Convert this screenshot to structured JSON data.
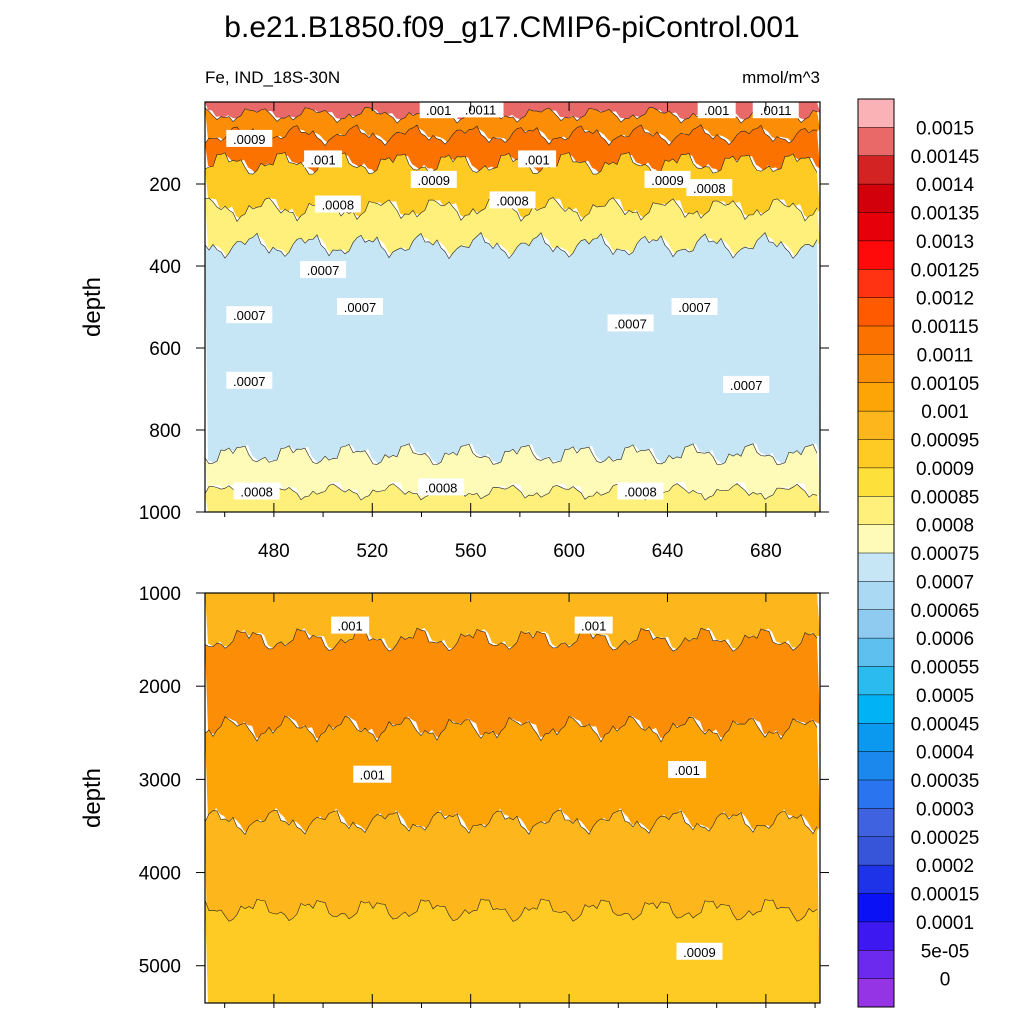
{
  "figure": {
    "title": "b.e21.B1850.f09_g17.CMIP6-piControl.001",
    "left_label": "Fe, IND_18S-30N",
    "right_label": "mmol/m^3"
  },
  "chart_data": [
    {
      "type": "heatmap",
      "panel": "upper",
      "variable": "Fe",
      "region": "IND_18S-30N",
      "units": "mmol/m^3",
      "xlabel": "",
      "ylabel": "depth",
      "xlim": [
        452,
        702
      ],
      "ylim": [
        1000,
        0
      ],
      "xticks": [
        480,
        520,
        560,
        600,
        640,
        680
      ],
      "yticks": [
        200,
        400,
        600,
        800,
        1000
      ],
      "show_x_tick_labels": true,
      "description_layers": [
        {
          "depth_range": [
            0,
            30
          ],
          "value": 0.00145
        },
        {
          "depth_range": [
            30,
            80
          ],
          "value": 0.00105
        },
        {
          "depth_range": [
            80,
            150
          ],
          "value": 0.0011
        },
        {
          "depth_range": [
            150,
            260
          ],
          "value": 0.0009
        },
        {
          "depth_range": [
            260,
            350
          ],
          "value": 0.0008
        },
        {
          "depth_range": [
            350,
            860
          ],
          "value": 0.0007
        },
        {
          "depth_range": [
            860,
            950
          ],
          "value": 0.00075
        },
        {
          "depth_range": [
            950,
            1000
          ],
          "value": 0.0008
        }
      ],
      "contour_labels": [
        {
          "text": ".0009",
          "x": 470,
          "depth": 90
        },
        {
          "text": ".001",
          "x": 547,
          "depth": 20
        },
        {
          "text": ".0011",
          "x": 564,
          "depth": 18
        },
        {
          "text": ".001",
          "x": 500,
          "depth": 140
        },
        {
          "text": ".001",
          "x": 587,
          "depth": 140
        },
        {
          "text": ".0009",
          "x": 545,
          "depth": 190
        },
        {
          "text": ".0009",
          "x": 640,
          "depth": 190
        },
        {
          "text": ".001",
          "x": 660,
          "depth": 20
        },
        {
          "text": ".0011",
          "x": 684,
          "depth": 20
        },
        {
          "text": ".0008",
          "x": 657,
          "depth": 210
        },
        {
          "text": ".0008",
          "x": 506,
          "depth": 250
        },
        {
          "text": ".0008",
          "x": 577,
          "depth": 240
        },
        {
          "text": ".0007",
          "x": 500,
          "depth": 410
        },
        {
          "text": ".0007",
          "x": 470,
          "depth": 520
        },
        {
          "text": ".0007",
          "x": 515,
          "depth": 500
        },
        {
          "text": ".0007",
          "x": 625,
          "depth": 540
        },
        {
          "text": ".0007",
          "x": 651,
          "depth": 500
        },
        {
          "text": ".0007",
          "x": 470,
          "depth": 680
        },
        {
          "text": ".0007",
          "x": 672,
          "depth": 690
        },
        {
          "text": ".0008",
          "x": 473,
          "depth": 950
        },
        {
          "text": ".0008",
          "x": 548,
          "depth": 940
        },
        {
          "text": ".0008",
          "x": 629,
          "depth": 950
        }
      ]
    },
    {
      "type": "heatmap",
      "panel": "lower",
      "variable": "Fe",
      "region": "IND_18S-30N",
      "units": "mmol/m^3",
      "xlabel": "",
      "ylabel": "depth",
      "xlim": [
        452,
        702
      ],
      "ylim": [
        5400,
        1000
      ],
      "xticks": [
        480,
        520,
        560,
        600,
        640,
        680
      ],
      "yticks": [
        1000,
        2000,
        3000,
        4000,
        5000
      ],
      "show_x_tick_labels": false,
      "description_layers": [
        {
          "depth_range": [
            1000,
            1500
          ],
          "value": 0.00095
        },
        {
          "depth_range": [
            1500,
            2450
          ],
          "value": 0.00105
        },
        {
          "depth_range": [
            2450,
            3450
          ],
          "value": 0.001
        },
        {
          "depth_range": [
            3450,
            5400
          ],
          "value": 0.00095
        },
        {
          "depth_range": [
            4400,
            5400
          ],
          "value": 0.0009
        }
      ],
      "contour_labels": [
        {
          "text": ".001",
          "x": 511,
          "depth": 1350
        },
        {
          "text": ".001",
          "x": 610,
          "depth": 1350
        },
        {
          "text": ".001",
          "x": 520,
          "depth": 2950
        },
        {
          "text": ".001",
          "x": 648,
          "depth": 2900
        },
        {
          "text": ".0009",
          "x": 653,
          "depth": 4850
        }
      ]
    }
  ],
  "colorbar": {
    "levels": [
      "0.0015",
      "0.00145",
      "0.0014",
      "0.00135",
      "0.0013",
      "0.00125",
      "0.0012",
      "0.00115",
      "0.0011",
      "0.00105",
      "0.001",
      "0.00095",
      "0.0009",
      "0.00085",
      "0.0008",
      "0.00075",
      "0.0007",
      "0.00065",
      "0.0006",
      "0.00055",
      "0.0005",
      "0.00045",
      "0.0004",
      "0.00035",
      "0.0003",
      "0.00025",
      "0.0002",
      "0.00015",
      "0.0001",
      "5e-05",
      "0"
    ],
    "colors": [
      "#fbb2b6",
      "#e96868",
      "#d32323",
      "#d2000a",
      "#e6000a",
      "#ff0a0a",
      "#ff3312",
      "#ff5a00",
      "#fb7200",
      "#fc8d06",
      "#fda507",
      "#fdb71c",
      "#fdcb23",
      "#fee03b",
      "#fef07a",
      "#fdfbb7",
      "#c6e5f5",
      "#a9d9f3",
      "#8fcbf0",
      "#5ec0ee",
      "#2bbbef",
      "#01b3f5",
      "#0b99f0",
      "#1a88ed",
      "#2a74f0",
      "#3f62e0",
      "#3755d9",
      "#1e33e8",
      "#0a12f5",
      "#3d18f0",
      "#6c2aee",
      "#9534e5"
    ]
  }
}
